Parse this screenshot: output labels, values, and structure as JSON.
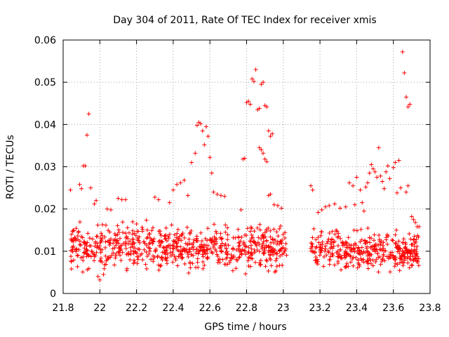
{
  "chart_data": {
    "type": "scatter",
    "title": "Day 304 of 2011, Rate Of TEC Index for receiver xmis",
    "xlabel": "GPS time / hours",
    "ylabel": "ROTI / TECUs",
    "xlim": [
      21.8,
      23.8
    ],
    "ylim": [
      0,
      0.06
    ],
    "grid": true,
    "legend": "none",
    "marker": "+",
    "color": "#ff0000",
    "x_tick_labels": [
      "21.8",
      "22",
      "22.2",
      "22.4",
      "22.6",
      "22.8",
      "23",
      "23.2",
      "23.4",
      "23.6",
      "23.8"
    ],
    "y_tick_labels": [
      "0",
      "0.01",
      "0.02",
      "0.03",
      "0.04",
      "0.05",
      "0.06"
    ],
    "bands": [
      {
        "x_start": 21.84,
        "x_end": 23.02,
        "y_low": 0.004,
        "y_high": 0.018,
        "count": 720
      },
      {
        "x_start": 23.15,
        "x_end": 23.74,
        "y_low": 0.004,
        "y_high": 0.016,
        "count": 380
      }
    ],
    "outliers": [
      {
        "x": 21.84,
        "y": 0.0245
      },
      {
        "x": 21.89,
        "y": 0.0258
      },
      {
        "x": 21.9,
        "y": 0.0248
      },
      {
        "x": 21.91,
        "y": 0.0302
      },
      {
        "x": 21.92,
        "y": 0.0302
      },
      {
        "x": 21.93,
        "y": 0.0375
      },
      {
        "x": 21.94,
        "y": 0.0425
      },
      {
        "x": 21.95,
        "y": 0.025
      },
      {
        "x": 21.97,
        "y": 0.0212
      },
      {
        "x": 21.98,
        "y": 0.022
      },
      {
        "x": 21.99,
        "y": 0.004
      },
      {
        "x": 22.0,
        "y": 0.0032
      },
      {
        "x": 22.02,
        "y": 0.0045
      },
      {
        "x": 22.04,
        "y": 0.02
      },
      {
        "x": 22.06,
        "y": 0.0198
      },
      {
        "x": 22.1,
        "y": 0.0225
      },
      {
        "x": 22.12,
        "y": 0.0222
      },
      {
        "x": 22.14,
        "y": 0.0222
      },
      {
        "x": 22.3,
        "y": 0.0228
      },
      {
        "x": 22.32,
        "y": 0.0222
      },
      {
        "x": 22.38,
        "y": 0.0215
      },
      {
        "x": 22.4,
        "y": 0.0245
      },
      {
        "x": 22.42,
        "y": 0.0258
      },
      {
        "x": 22.44,
        "y": 0.0262
      },
      {
        "x": 22.46,
        "y": 0.0268
      },
      {
        "x": 22.48,
        "y": 0.0232
      },
      {
        "x": 22.5,
        "y": 0.031
      },
      {
        "x": 22.52,
        "y": 0.0332
      },
      {
        "x": 22.53,
        "y": 0.0398
      },
      {
        "x": 22.54,
        "y": 0.0405
      },
      {
        "x": 22.55,
        "y": 0.0402
      },
      {
        "x": 22.56,
        "y": 0.0385
      },
      {
        "x": 22.57,
        "y": 0.0352
      },
      {
        "x": 22.58,
        "y": 0.0395
      },
      {
        "x": 22.59,
        "y": 0.0372
      },
      {
        "x": 22.6,
        "y": 0.0322
      },
      {
        "x": 22.61,
        "y": 0.0285
      },
      {
        "x": 22.62,
        "y": 0.024
      },
      {
        "x": 22.64,
        "y": 0.0235
      },
      {
        "x": 22.66,
        "y": 0.0232
      },
      {
        "x": 22.68,
        "y": 0.023
      },
      {
        "x": 22.77,
        "y": 0.0198
      },
      {
        "x": 22.78,
        "y": 0.0318
      },
      {
        "x": 22.79,
        "y": 0.032
      },
      {
        "x": 22.8,
        "y": 0.0452
      },
      {
        "x": 22.81,
        "y": 0.0455
      },
      {
        "x": 22.82,
        "y": 0.0448
      },
      {
        "x": 22.83,
        "y": 0.0508
      },
      {
        "x": 22.84,
        "y": 0.0502
      },
      {
        "x": 22.85,
        "y": 0.053
      },
      {
        "x": 22.86,
        "y": 0.0435
      },
      {
        "x": 22.87,
        "y": 0.0438
      },
      {
        "x": 22.88,
        "y": 0.0495
      },
      {
        "x": 22.89,
        "y": 0.05
      },
      {
        "x": 22.9,
        "y": 0.0445
      },
      {
        "x": 22.91,
        "y": 0.0442
      },
      {
        "x": 22.92,
        "y": 0.0385
      },
      {
        "x": 22.93,
        "y": 0.0372
      },
      {
        "x": 22.94,
        "y": 0.0378
      },
      {
        "x": 22.87,
        "y": 0.0345
      },
      {
        "x": 22.88,
        "y": 0.034
      },
      {
        "x": 22.89,
        "y": 0.0332
      },
      {
        "x": 22.9,
        "y": 0.0318
      },
      {
        "x": 22.91,
        "y": 0.0312
      },
      {
        "x": 22.92,
        "y": 0.0232
      },
      {
        "x": 22.93,
        "y": 0.0235
      },
      {
        "x": 22.95,
        "y": 0.021
      },
      {
        "x": 22.97,
        "y": 0.0208
      },
      {
        "x": 22.99,
        "y": 0.0202
      },
      {
        "x": 23.15,
        "y": 0.0255
      },
      {
        "x": 23.16,
        "y": 0.0245
      },
      {
        "x": 23.19,
        "y": 0.0192
      },
      {
        "x": 23.21,
        "y": 0.0198
      },
      {
        "x": 23.23,
        "y": 0.0205
      },
      {
        "x": 23.25,
        "y": 0.0208
      },
      {
        "x": 23.28,
        "y": 0.0212
      },
      {
        "x": 23.31,
        "y": 0.0202
      },
      {
        "x": 23.34,
        "y": 0.0205
      },
      {
        "x": 23.36,
        "y": 0.0262
      },
      {
        "x": 23.38,
        "y": 0.0255
      },
      {
        "x": 23.39,
        "y": 0.021
      },
      {
        "x": 23.4,
        "y": 0.0275
      },
      {
        "x": 23.42,
        "y": 0.0245
      },
      {
        "x": 23.43,
        "y": 0.0215
      },
      {
        "x": 23.44,
        "y": 0.0195
      },
      {
        "x": 23.45,
        "y": 0.0252
      },
      {
        "x": 23.46,
        "y": 0.0262
      },
      {
        "x": 23.47,
        "y": 0.0285
      },
      {
        "x": 23.48,
        "y": 0.0305
      },
      {
        "x": 23.49,
        "y": 0.0295
      },
      {
        "x": 23.5,
        "y": 0.0288
      },
      {
        "x": 23.51,
        "y": 0.0275
      },
      {
        "x": 23.52,
        "y": 0.0345
      },
      {
        "x": 23.53,
        "y": 0.0278
      },
      {
        "x": 23.54,
        "y": 0.0265
      },
      {
        "x": 23.55,
        "y": 0.0248
      },
      {
        "x": 23.56,
        "y": 0.0288
      },
      {
        "x": 23.57,
        "y": 0.0302
      },
      {
        "x": 23.58,
        "y": 0.0272
      },
      {
        "x": 23.6,
        "y": 0.0298
      },
      {
        "x": 23.61,
        "y": 0.031
      },
      {
        "x": 23.62,
        "y": 0.0238
      },
      {
        "x": 23.63,
        "y": 0.0315
      },
      {
        "x": 23.64,
        "y": 0.025
      },
      {
        "x": 23.65,
        "y": 0.0572
      },
      {
        "x": 23.66,
        "y": 0.0522
      },
      {
        "x": 23.67,
        "y": 0.0465
      },
      {
        "x": 23.68,
        "y": 0.0442
      },
      {
        "x": 23.69,
        "y": 0.0448
      },
      {
        "x": 23.68,
        "y": 0.0255
      },
      {
        "x": 23.67,
        "y": 0.024
      },
      {
        "x": 23.7,
        "y": 0.0182
      },
      {
        "x": 23.71,
        "y": 0.0175
      },
      {
        "x": 23.72,
        "y": 0.0168
      },
      {
        "x": 23.73,
        "y": 0.0158
      },
      {
        "x": 23.74,
        "y": 0.0158
      }
    ]
  }
}
